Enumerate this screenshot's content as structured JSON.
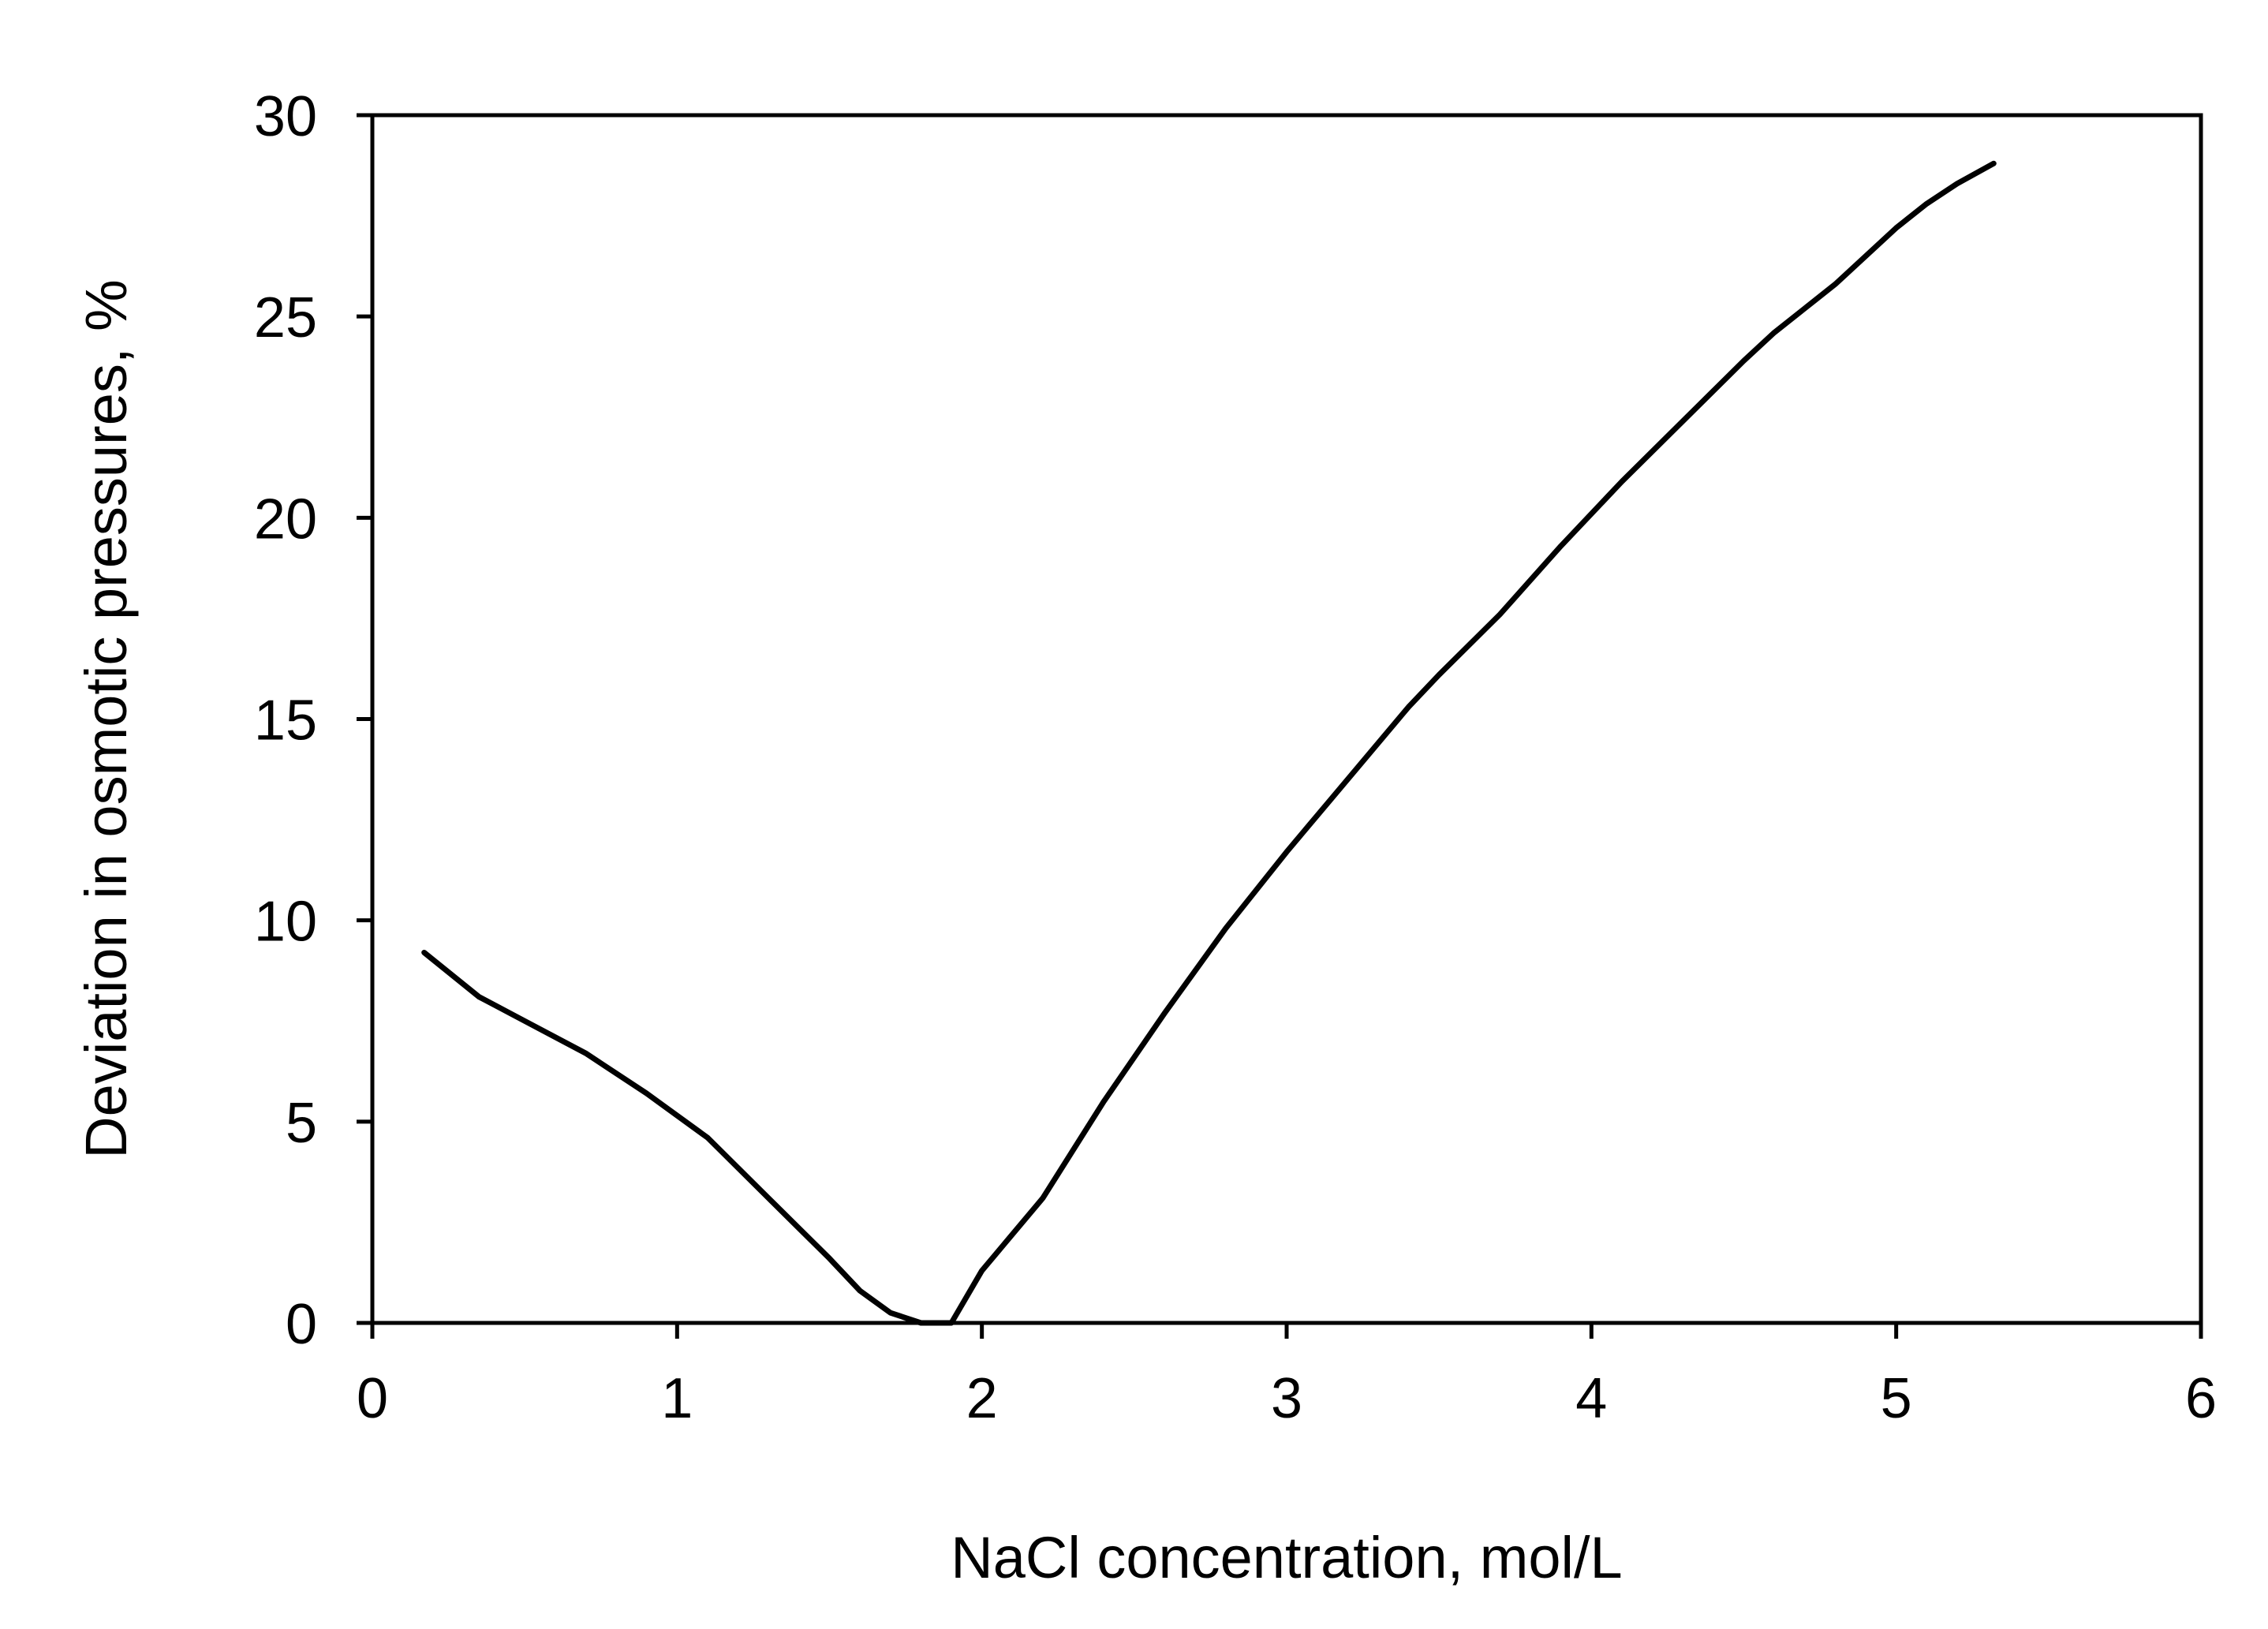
{
  "chart_data": {
    "type": "line",
    "title": "",
    "xlabel": "NaCl concentration, mol/L",
    "ylabel": "Deviation in osmotic pressures, %",
    "xlim": [
      0,
      6
    ],
    "ylim": [
      0,
      30
    ],
    "xticks": [
      0,
      1,
      2,
      3,
      4,
      5,
      6
    ],
    "yticks": [
      0,
      5,
      10,
      15,
      20,
      25,
      30
    ],
    "xtick_labels": [
      "0",
      "1",
      "2",
      "3",
      "4",
      "5",
      "6"
    ],
    "ytick_labels": [
      "0",
      "5",
      "10",
      "15",
      "20",
      "25",
      "30"
    ],
    "grid": false,
    "legend": "none",
    "series": [
      {
        "color": "#000000",
        "x": [
          0.17,
          0.35,
          0.5,
          0.7,
          0.9,
          1.1,
          1.3,
          1.5,
          1.6,
          1.7,
          1.8,
          1.85,
          1.9,
          2.0,
          2.2,
          2.4,
          2.6,
          2.8,
          3.0,
          3.2,
          3.4,
          3.5,
          3.7,
          3.9,
          4.1,
          4.3,
          4.5,
          4.6,
          4.8,
          5.0,
          5.1,
          5.2,
          5.32
        ],
        "y": [
          9.2,
          8.1,
          7.5,
          6.7,
          5.7,
          4.6,
          3.1,
          1.6,
          0.8,
          0.25,
          0.0,
          0.0,
          0.0,
          1.3,
          3.1,
          5.5,
          7.7,
          9.8,
          11.7,
          13.5,
          15.3,
          16.1,
          17.6,
          19.3,
          20.9,
          22.4,
          23.9,
          24.6,
          25.8,
          27.2,
          27.8,
          28.3,
          28.8
        ]
      }
    ]
  }
}
